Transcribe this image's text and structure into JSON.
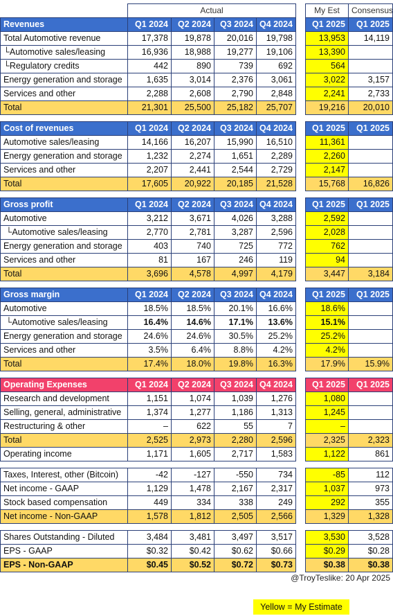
{
  "header": {
    "actual": "Actual",
    "my_est": "My Est",
    "consensus": "Consensus"
  },
  "sections": [
    {
      "title": "Revenues",
      "columns": [
        "Q1 2024",
        "Q2 2024",
        "Q3 2024",
        "Q4 2024",
        "Q1 2025",
        "Q1 2025"
      ],
      "rows": [
        {
          "label": "Total Automotive revenue",
          "cells": [
            "17,378",
            "19,878",
            "20,016",
            "19,798",
            "13,953",
            "14,119"
          ]
        },
        {
          "label": "└Automotive sales/leasing",
          "cells": [
            "16,936",
            "18,988",
            "19,277",
            "19,106",
            "13,390",
            null
          ]
        },
        {
          "label": "└Regulatory credits",
          "cells": [
            "442",
            "890",
            "739",
            "692",
            "564",
            null
          ]
        },
        {
          "label": "Energy generation and storage",
          "cells": [
            "1,635",
            "3,014",
            "2,376",
            "3,061",
            "3,022",
            "3,157"
          ]
        },
        {
          "label": "Services and other",
          "cells": [
            "2,288",
            "2,608",
            "2,790",
            "2,848",
            "2,241",
            "2,733"
          ]
        },
        {
          "label": "Total",
          "total": true,
          "cells": [
            "21,301",
            "25,500",
            "25,182",
            "25,707",
            "19,216",
            "20,010"
          ]
        }
      ]
    },
    {
      "title": "Cost of revenues",
      "columns": [
        "Q1 2024",
        "Q2 2024",
        "Q3 2024",
        "Q4 2024",
        "Q1 2025",
        "Q1 2025"
      ],
      "rows": [
        {
          "label": "Automotive sales/leasing",
          "cells": [
            "14,166",
            "16,207",
            "15,990",
            "16,510",
            "11,361",
            null
          ]
        },
        {
          "label": "Energy generation and storage",
          "cells": [
            "1,232",
            "2,274",
            "1,651",
            "2,289",
            "2,260",
            null
          ]
        },
        {
          "label": "Services and other",
          "cells": [
            "2,207",
            "2,441",
            "2,544",
            "2,729",
            "2,147",
            null
          ]
        },
        {
          "label": "Total",
          "total": true,
          "cells": [
            "17,605",
            "20,922",
            "20,185",
            "21,528",
            "15,768",
            "16,826"
          ]
        }
      ]
    },
    {
      "title": "Gross profit",
      "columns": [
        "Q1 2024",
        "Q2 2024",
        "Q3 2024",
        "Q4 2024",
        "Q1 2025",
        "Q1 2025"
      ],
      "rows": [
        {
          "label": "Automotive",
          "cells": [
            "3,212",
            "3,671",
            "4,026",
            "3,288",
            "2,592",
            null
          ]
        },
        {
          "label": " └Automotive sales/leasing",
          "cells": [
            "2,770",
            "2,781",
            "3,287",
            "2,596",
            "2,028",
            null
          ]
        },
        {
          "label": "Energy generation and storage",
          "cells": [
            "403",
            "740",
            "725",
            "772",
            "762",
            null
          ]
        },
        {
          "label": "Services and other",
          "cells": [
            "81",
            "167",
            "246",
            "119",
            "94",
            null
          ]
        },
        {
          "label": "Total",
          "total": true,
          "cells": [
            "3,696",
            "4,578",
            "4,997",
            "4,179",
            "3,447",
            "3,184"
          ]
        }
      ]
    },
    {
      "title": "Gross margin",
      "columns": [
        "Q1 2024",
        "Q2 2024",
        "Q3 2024",
        "Q4 2024",
        "Q1 2025",
        "Q1 2025"
      ],
      "rows": [
        {
          "label": "Automotive",
          "cells": [
            "18.5%",
            "18.5%",
            "20.1%",
            "16.6%",
            "18.6%",
            null
          ]
        },
        {
          "label": " └Automotive sales/leasing",
          "bold": true,
          "cells": [
            "16.4%",
            "14.6%",
            "17.1%",
            "13.6%",
            "15.1%",
            null
          ]
        },
        {
          "label": "Energy generation and storage",
          "cells": [
            "24.6%",
            "24.6%",
            "30.5%",
            "25.2%",
            "25.2%",
            null
          ]
        },
        {
          "label": "Services and other",
          "cells": [
            "3.5%",
            "6.4%",
            "8.8%",
            "4.2%",
            "4.2%",
            null
          ]
        },
        {
          "label": "Total",
          "total": true,
          "cells": [
            "17.4%",
            "18.0%",
            "19.8%",
            "16.3%",
            "17.9%",
            "15.9%"
          ]
        }
      ]
    },
    {
      "title": "Operating Expenses",
      "color": "#f2416b",
      "columns": [
        "Q1 2024",
        "Q2 2024",
        "Q3 2024",
        "Q4 2024",
        "Q1 2025",
        "Q1 2025"
      ],
      "rows": [
        {
          "label": "Research and development",
          "cells": [
            "1,151",
            "1,074",
            "1,039",
            "1,276",
            "1,080",
            null
          ]
        },
        {
          "label": "Selling, general, administrative",
          "cells": [
            "1,374",
            "1,277",
            "1,186",
            "1,313",
            "1,245",
            null
          ]
        },
        {
          "label": "Restructuring & other",
          "cells": [
            "–",
            "622",
            "55",
            "7",
            "–",
            null
          ]
        },
        {
          "label": "Total",
          "total": true,
          "cells": [
            "2,525",
            "2,973",
            "2,280",
            "2,596",
            "2,325",
            "2,323"
          ]
        },
        {
          "label": "Operating income",
          "cells": [
            "1,171",
            "1,605",
            "2,717",
            "1,583",
            "1,122",
            "861"
          ]
        }
      ]
    },
    {
      "rows": [
        {
          "label": "Taxes, Interest, other (Bitcoin)",
          "cells": [
            "-42",
            "-127",
            "-550",
            "734",
            "-85",
            "112"
          ]
        },
        {
          "label": "Net income - GAAP",
          "cells": [
            "1,129",
            "1,478",
            "2,167",
            "2,317",
            "1,037",
            "973"
          ]
        },
        {
          "label": "Stock based compensation",
          "cells": [
            "449",
            "334",
            "338",
            "249",
            "292",
            "355"
          ]
        },
        {
          "label": "Net income - Non-GAAP",
          "total": true,
          "cells": [
            "1,578",
            "1,812",
            "2,505",
            "2,566",
            "1,329",
            "1,328"
          ]
        }
      ]
    },
    {
      "rows": [
        {
          "label": "Shares Outstanding - Diluted",
          "cells": [
            "3,484",
            "3,481",
            "3,497",
            "3,517",
            "3,530",
            "3,528"
          ]
        },
        {
          "label": "EPS - GAAP",
          "cells": [
            "$0.32",
            "$0.42",
            "$0.62",
            "$0.66",
            "$0.29",
            "$0.28"
          ]
        },
        {
          "label": "EPS - Non-GAAP",
          "total": true,
          "bold": true,
          "cells": [
            "$0.45",
            "$0.52",
            "$0.72",
            "$0.73",
            "$0.38",
            "$0.38"
          ]
        }
      ]
    }
  ],
  "footer": {
    "credit": "@TroyTeslike: 20 Apr 2025",
    "legend": "Yellow = My Estimate"
  }
}
